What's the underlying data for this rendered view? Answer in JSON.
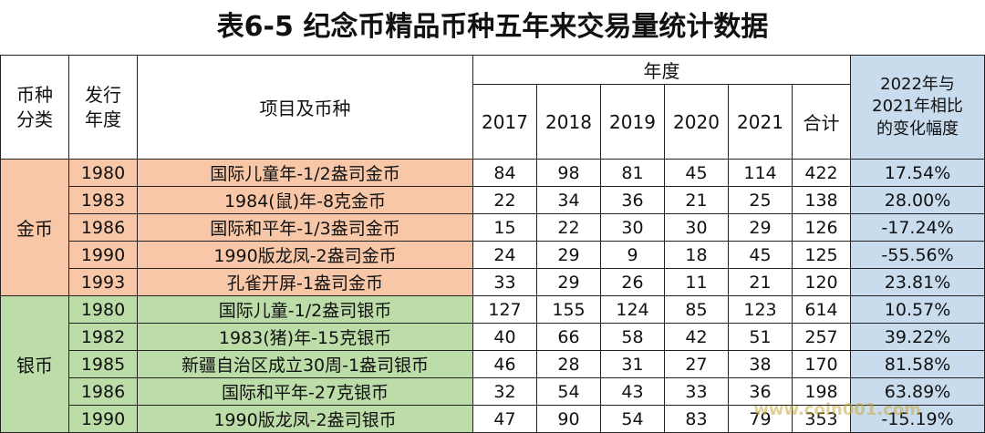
{
  "title": "表6-5 纪念币精品币种五年来交易量统计数据",
  "table": {
    "headers": {
      "category": "币种分类",
      "issue_year": "发行年度",
      "item": "项目及币种",
      "year_group": "年度",
      "years": [
        "2017",
        "2018",
        "2019",
        "2020",
        "2021",
        "合计"
      ],
      "change": "2022年与2021年相比的变化幅度"
    },
    "groups": [
      {
        "name": "金币",
        "rows": [
          [
            "1980",
            "国际儿童年-1/2盎司金币",
            "84",
            "98",
            "81",
            "45",
            "114",
            "422",
            "17.54%"
          ],
          [
            "1983",
            "1984(鼠)年-8克金币",
            "22",
            "34",
            "36",
            "21",
            "25",
            "138",
            "28.00%"
          ],
          [
            "1986",
            "国际和平年-1/3盎司金币",
            "15",
            "22",
            "30",
            "30",
            "29",
            "126",
            "-17.24%"
          ],
          [
            "1990",
            "1990版龙凤-2盎司金币",
            "24",
            "29",
            "9",
            "18",
            "45",
            "125",
            "-55.56%"
          ],
          [
            "1993",
            "孔雀开屏-1盎司金币",
            "33",
            "29",
            "26",
            "11",
            "21",
            "120",
            "23.81%"
          ]
        ]
      },
      {
        "name": "银币",
        "rows": [
          [
            "1980",
            "国际儿童-1/2盎司银币",
            "127",
            "155",
            "124",
            "85",
            "123",
            "614",
            "10.57%"
          ],
          [
            "1982",
            "1983(猪)年-15克银币",
            "40",
            "66",
            "58",
            "42",
            "51",
            "257",
            "39.22%"
          ],
          [
            "1985",
            "新疆自治区成立30周-1盎司银币",
            "46",
            "28",
            "31",
            "27",
            "38",
            "170",
            "81.58%"
          ],
          [
            "1986",
            "国际和平年-27克银币",
            "32",
            "54",
            "43",
            "33",
            "36",
            "198",
            "63.89%"
          ],
          [
            "1990",
            "1990版龙凤-2盎司银币",
            "47",
            "90",
            "54",
            "83",
            "79",
            "353",
            "-15.19%"
          ]
        ]
      }
    ]
  },
  "watermark": "www.coin001.com"
}
